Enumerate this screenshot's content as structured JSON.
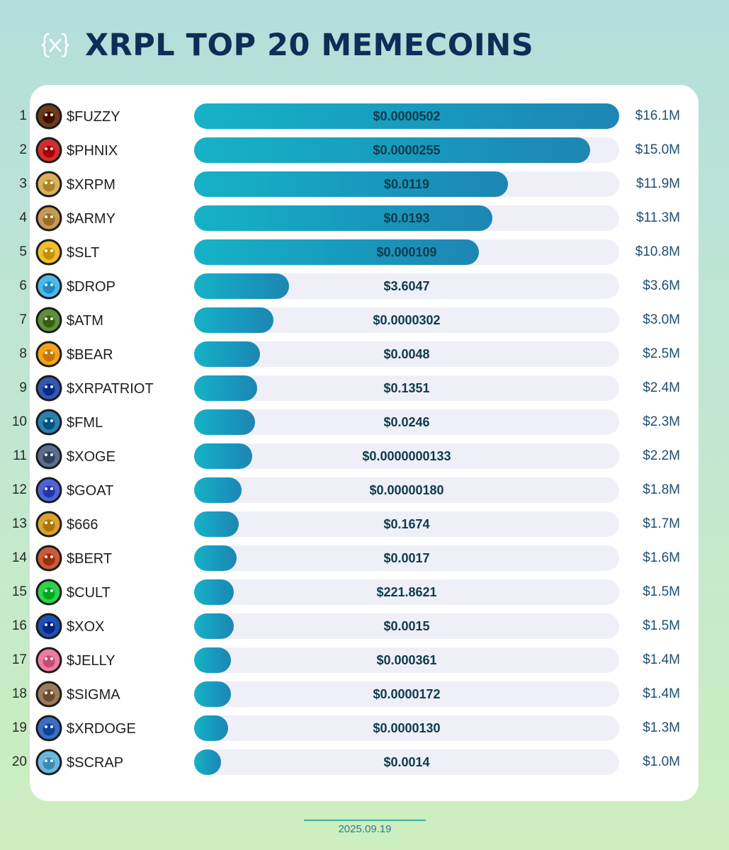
{
  "header": {
    "logo_icon": "bracket-x-logo-icon",
    "title": "XRPL TOP 20 MEMECOINS"
  },
  "footer": {
    "date": "2025.09.19"
  },
  "colors": {
    "title": "#0f2d57",
    "bar_start": "#16b2c6",
    "bar_end": "#1d86b3",
    "track": "#efeff8",
    "market_cap_text": "#1e4f73"
  },
  "chart_data": {
    "type": "bar",
    "orientation": "horizontal",
    "title": "XRPL TOP 20 MEMECOINS",
    "value_unit": "$M",
    "xlim": [
      0,
      16.1
    ],
    "grid": false,
    "categories": [
      "$FUZZY",
      "$PHNIX",
      "$XRPM",
      "$ARMY",
      "$SLT",
      "$DROP",
      "$ATM",
      "$BEAR",
      "$XRPATRIOT",
      "$FML",
      "$XOGE",
      "$GOAT",
      "$666",
      "$BERT",
      "$CULT",
      "$XOX",
      "$JELLY",
      "$SIGMA",
      "$XRDOGE",
      "$SCRAP"
    ],
    "ranks": [
      "1",
      "2",
      "3",
      "4",
      "5",
      "6",
      "7",
      "8",
      "9",
      "10",
      "11",
      "12",
      "13",
      "14",
      "15",
      "16",
      "17",
      "18",
      "19",
      "20"
    ],
    "values": [
      16.1,
      15.0,
      11.9,
      11.3,
      10.8,
      3.6,
      3.0,
      2.5,
      2.4,
      2.3,
      2.2,
      1.8,
      1.7,
      1.6,
      1.5,
      1.5,
      1.4,
      1.4,
      1.3,
      1.0
    ],
    "market_cap_labels": [
      "$16.1M",
      "$15.0M",
      "$11.9M",
      "$11.3M",
      "$10.8M",
      "$3.6M",
      "$3.0M",
      "$2.5M",
      "$2.4M",
      "$2.3M",
      "$2.2M",
      "$1.8M",
      "$1.7M",
      "$1.6M",
      "$1.5M",
      "$1.5M",
      "$1.4M",
      "$1.4M",
      "$1.3M",
      "$1.0M"
    ],
    "price_labels": [
      "$0.0000502",
      "$0.0000255",
      "$0.0119",
      "$0.0193",
      "$0.000109",
      "$3.6047",
      "$0.0000302",
      "$0.0048",
      "$0.1351",
      "$0.0246",
      "$0.0000000133",
      "$0.00000180",
      "$0.1674",
      "$0.0017",
      "$221.8621",
      "$0.0015",
      "$0.000361",
      "$0.0000172",
      "$0.0000130",
      "$0.0014"
    ],
    "icons": [
      "fuzzy-bear-avatar-icon",
      "phoenix-bird-avatar-icon",
      "xrpm-x-logo-icon",
      "army-x-logo-icon",
      "slt-cap-face-avatar-icon",
      "drop-blue-blob-avatar-icon",
      "atm-tree-logo-icon",
      "bear-top-hat-avatar-icon",
      "xrpatriot-flag-face-avatar-icon",
      "fml-colorful-logo-icon",
      "xoge-robot-avatar-icon",
      "goat-unicorn-avatar-icon",
      "666-dark-avatar-icon",
      "bert-bird-avatar-icon",
      "cult-spider-logo-icon",
      "xox-ring-logo-icon",
      "jelly-donut-avatar-icon",
      "sigma-sunglasses-avatar-icon",
      "xrdoge-husky-avatar-icon",
      "scrap-dog-avatar-icon"
    ],
    "icon_colors": [
      "#6e3c1c",
      "#cf2f2f",
      "#d8b25a",
      "#c69a55",
      "#f2bd2c",
      "#4cb8ec",
      "#5f8f3c",
      "#f0a418",
      "#3557b4",
      "#2c7fae",
      "#5b6e8c",
      "#4f63d8",
      "#d9a233",
      "#c95a3a",
      "#2bd34a",
      "#1f4fb0",
      "#f07aa4",
      "#9a7a5c",
      "#3b6fc6",
      "#68b8e0"
    ]
  }
}
